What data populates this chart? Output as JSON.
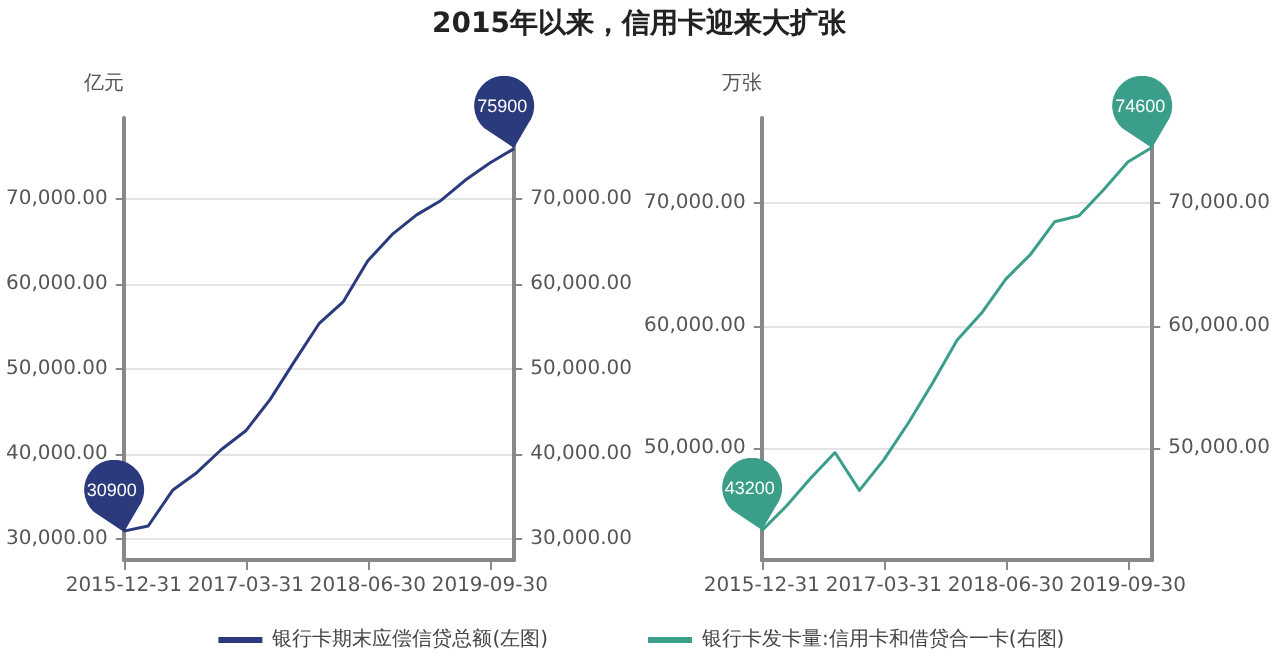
{
  "chart_data": [
    {
      "type": "line",
      "title": "2015年以来，信用卡迎来大扩张",
      "ylabel": "亿元",
      "categories": [
        "2015-12-31",
        null,
        null,
        null,
        null,
        "2017-03-31",
        null,
        null,
        null,
        null,
        "2018-06-30",
        null,
        null,
        null,
        null,
        "2019-09-30",
        null
      ],
      "series": [
        {
          "name": "银行卡期末应偿信贷总额(左图)",
          "color": "#2b3a7c",
          "values": [
            30900,
            31500,
            35700,
            37800,
            40500,
            42700,
            46400,
            50900,
            55300,
            57900,
            62700,
            65800,
            68100,
            69800,
            72200,
            74200,
            75900
          ],
          "value_labels": [
            "30900",
            null,
            null,
            null,
            null,
            null,
            null,
            null,
            null,
            null,
            null,
            null,
            null,
            null,
            null,
            null,
            "75900"
          ]
        }
      ],
      "ylim": [
        27500,
        79500
      ],
      "yticks": [
        {
          "value": 30000,
          "label": "30,000.00"
        },
        {
          "value": 40000,
          "label": "40,000.00"
        },
        {
          "value": 50000,
          "label": "50,000.00"
        },
        {
          "value": 60000,
          "label": "60,000.00"
        },
        {
          "value": 70000,
          "label": "70,000.00"
        }
      ],
      "y2lim": [
        27500,
        79500
      ],
      "y2ticks": [
        {
          "value": 30000,
          "label": "30,000.00"
        },
        {
          "value": 40000,
          "label": "40,000.00"
        },
        {
          "value": 50000,
          "label": "50,000.00"
        },
        {
          "value": 60000,
          "label": "60,000.00"
        },
        {
          "value": 70000,
          "label": "70,000.00"
        }
      ],
      "grid": "y",
      "legend": "bottom right",
      "marker": "none",
      "line_style": "solid"
    },
    {
      "type": "line",
      "ylabel": "万张",
      "categories": [
        "2015-12-31",
        null,
        null,
        null,
        null,
        "2017-03-31",
        null,
        null,
        null,
        null,
        "2018-06-30",
        null,
        null,
        null,
        null,
        "2019-09-30",
        null
      ],
      "series": [
        {
          "name": "银行卡发卡量:信用卡和借贷合一卡(右图)",
          "color": "#3a9e8a",
          "values": [
            43200,
            45200,
            47500,
            49600,
            46500,
            49000,
            52000,
            55300,
            58800,
            61000,
            63800,
            65800,
            68500,
            69000,
            71100,
            73400,
            74600
          ],
          "value_labels": [
            "43200",
            null,
            null,
            null,
            null,
            null,
            null,
            null,
            null,
            null,
            null,
            null,
            null,
            null,
            null,
            null,
            "74600"
          ]
        }
      ],
      "ylim": [
        40800,
        77000
      ],
      "yticks": [
        {
          "value": 50000,
          "label": "50,000.00"
        },
        {
          "value": 60000,
          "label": "60,000.00"
        },
        {
          "value": 70000,
          "label": "70,000.00"
        }
      ],
      "y2lim": [
        40800,
        77000
      ],
      "y2ticks": [
        {
          "value": 50000,
          "label": "50,000.00"
        },
        {
          "value": 60000,
          "label": "60,000.00"
        },
        {
          "value": 70000,
          "label": "70,000.00"
        }
      ],
      "grid": "y",
      "legend": "bottom left",
      "marker": "none",
      "line_style": "solid"
    }
  ]
}
